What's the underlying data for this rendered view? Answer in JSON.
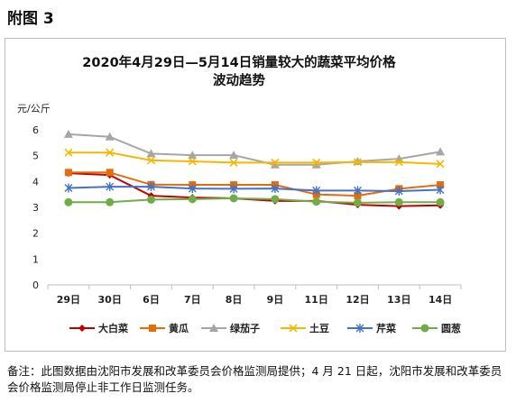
{
  "page": {
    "heading": "附图 3",
    "note": "备注：此图数据由沈阳市发展和改革委员会价格监测局提供；4 月 21 日起，沈阳市发展和改革委员会价格监测局停止非工作日监测任务。"
  },
  "chart_data": {
    "type": "line",
    "title": [
      "2020年4月29日—5月14日销量较大的蔬菜平均价格",
      "波动趋势"
    ],
    "ylabel": "元/公斤",
    "xlabel": "",
    "ylim": [
      0,
      6
    ],
    "yticks": [
      0,
      1,
      2,
      3,
      4,
      5,
      6
    ],
    "grid": false,
    "legend": "bottom",
    "categories": [
      "29日",
      "30日",
      "6日",
      "7日",
      "8日",
      "9日",
      "11日",
      "12日",
      "13日",
      "14日"
    ],
    "series": [
      {
        "name": "大白菜",
        "color": "#c00000",
        "marker": "diamond",
        "values": [
          4.32,
          4.25,
          3.45,
          3.38,
          3.35,
          3.25,
          3.25,
          3.1,
          3.05,
          3.08
        ]
      },
      {
        "name": "黄瓜",
        "color": "#e46c0a",
        "marker": "square",
        "values": [
          4.35,
          4.35,
          3.88,
          3.87,
          3.87,
          3.87,
          3.5,
          3.45,
          3.72,
          3.87
        ]
      },
      {
        "name": "绿茄子",
        "color": "#a6a6a6",
        "marker": "triangle",
        "values": [
          5.83,
          5.73,
          5.08,
          5.02,
          5.02,
          4.65,
          4.65,
          4.78,
          4.88,
          5.15
        ]
      },
      {
        "name": "土豆",
        "color": "#f5b800",
        "marker": "x",
        "values": [
          5.12,
          5.12,
          4.82,
          4.78,
          4.73,
          4.73,
          4.73,
          4.75,
          4.75,
          4.68
        ]
      },
      {
        "name": "芹菜",
        "color": "#4472c4",
        "marker": "star",
        "values": [
          3.75,
          3.8,
          3.8,
          3.73,
          3.72,
          3.73,
          3.65,
          3.65,
          3.63,
          3.68
        ]
      },
      {
        "name": "圆葱",
        "color": "#70ad47",
        "marker": "circle",
        "values": [
          3.2,
          3.2,
          3.3,
          3.32,
          3.35,
          3.32,
          3.22,
          3.18,
          3.2,
          3.2
        ]
      }
    ]
  }
}
